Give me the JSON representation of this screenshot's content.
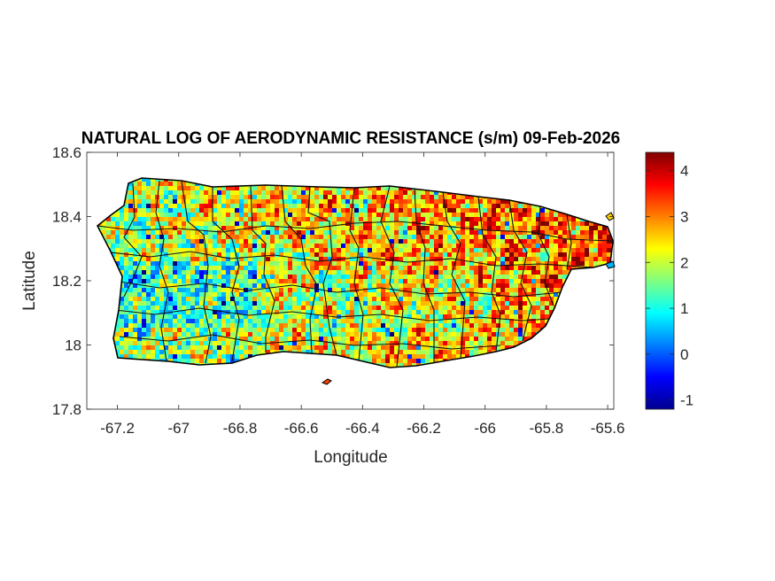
{
  "chart_data": {
    "type": "heatmap",
    "title": "NATURAL LOG OF AERODYNAMIC RESISTANCE (s/m) 09-Feb-2026",
    "xlabel": "Longitude",
    "ylabel": "Latitude",
    "xlim": [
      -67.3,
      -65.58
    ],
    "ylim": [
      17.8,
      18.6
    ],
    "xticks": [
      -67.2,
      -67,
      -66.8,
      -66.6,
      -66.4,
      -66.2,
      -66,
      -65.8,
      -65.6
    ],
    "xtick_labels": [
      "-67.2",
      "-67",
      "-66.8",
      "-66.6",
      "-66.4",
      "-66.2",
      "-66",
      "-65.8",
      "-65.6"
    ],
    "yticks": [
      17.8,
      18,
      18.2,
      18.4,
      18.6
    ],
    "ytick_labels": [
      "17.8",
      "18",
      "18.2",
      "18.4",
      "18.6"
    ],
    "colorbar": {
      "colormap": "jet",
      "range": [
        -1.2,
        4.4
      ],
      "ticks": [
        -1,
        0,
        1,
        2,
        3,
        4
      ],
      "tick_labels": [
        "-1",
        "0",
        "1",
        "2",
        "3",
        "4"
      ]
    },
    "grid": false
  }
}
